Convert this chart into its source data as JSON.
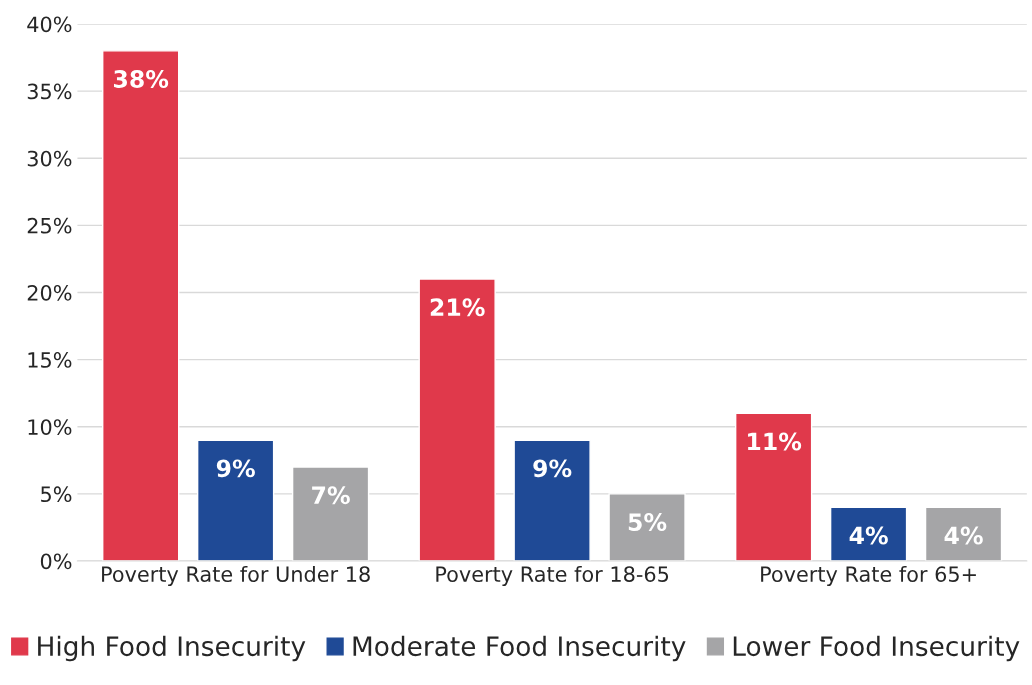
{
  "chart_data": {
    "type": "bar",
    "categories": [
      "Poverty Rate for Under 18",
      "Poverty Rate for 18-65",
      "Poverty Rate for 65+"
    ],
    "series": [
      {
        "name": "High Food Insecurity",
        "color": "#e0394b",
        "values": [
          38,
          21,
          11
        ],
        "value_labels": [
          "38%",
          "21%",
          "11%"
        ]
      },
      {
        "name": "Moderate Food Insecurity",
        "color": "#1f4a96",
        "values": [
          9,
          9,
          4
        ],
        "value_labels": [
          "9%",
          "9%",
          "4%"
        ]
      },
      {
        "name": "Lower Food Insecurity",
        "color": "#a5a5a7",
        "values": [
          7,
          5,
          4
        ],
        "value_labels": [
          "7%",
          "5%",
          "4%"
        ]
      }
    ],
    "ylim": [
      0,
      40
    ],
    "yticks": [
      {
        "value": 0,
        "label": "0%"
      },
      {
        "value": 5,
        "label": "5%"
      },
      {
        "value": 10,
        "label": "10%"
      },
      {
        "value": 15,
        "label": "15%"
      },
      {
        "value": 20,
        "label": "20%"
      },
      {
        "value": 25,
        "label": "25%"
      },
      {
        "value": 30,
        "label": "30%"
      },
      {
        "value": 35,
        "label": "35%"
      },
      {
        "value": 40,
        "label": "40%"
      }
    ],
    "grid": "y",
    "legend": "bottom"
  }
}
